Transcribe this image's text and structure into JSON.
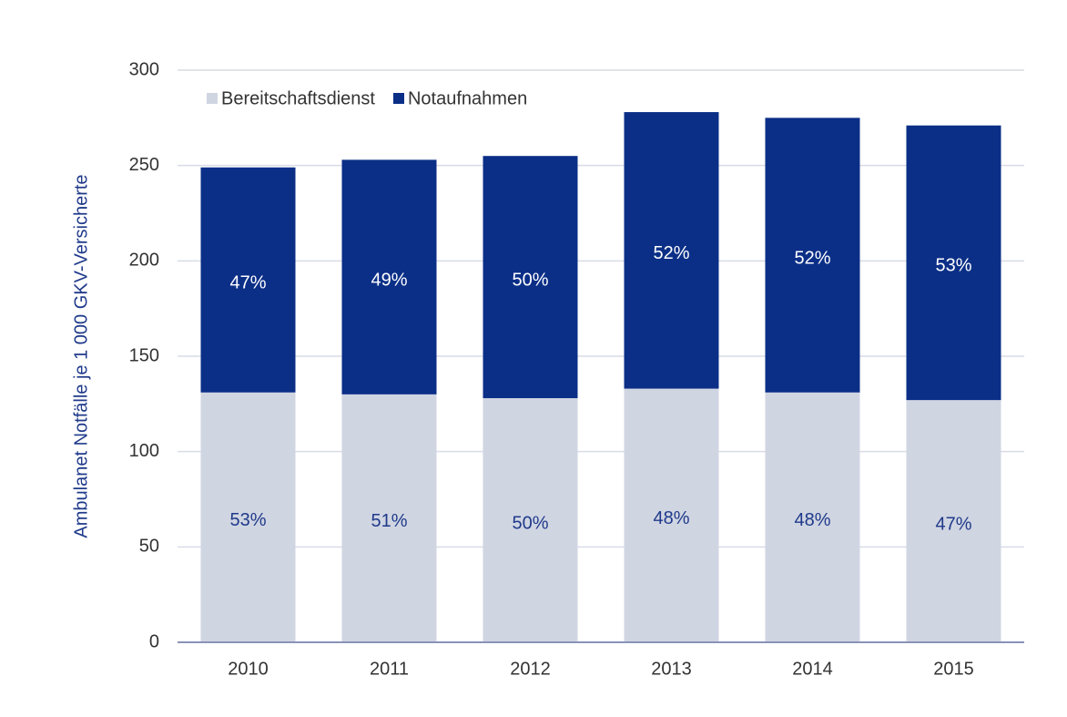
{
  "chart_data": {
    "type": "stacked_bar",
    "y_axis_label": "Ambulanet Notfälle je 1 000 GKV-Versicherte",
    "categories": [
      "2010",
      "2011",
      "2012",
      "2013",
      "2014",
      "2015"
    ],
    "series": [
      {
        "name": "Bereitschaftsdienst",
        "color": "#d0d5e2",
        "label_color": "#1f3a8a",
        "values": [
          131,
          130,
          128,
          133,
          131,
          127
        ],
        "share_labels": [
          "53%",
          "51%",
          "50%",
          "48%",
          "48%",
          "47%"
        ]
      },
      {
        "name": "Notaufnahmen",
        "color": "#0b2f87",
        "label_color": "#ffffff",
        "values": [
          118,
          123,
          127,
          145,
          144,
          144
        ],
        "share_labels": [
          "47%",
          "49%",
          "50%",
          "52%",
          "52%",
          "53%"
        ]
      }
    ],
    "ylim": [
      0,
      300
    ],
    "yticks": [
      0,
      50,
      100,
      150,
      200,
      250,
      300
    ],
    "grid": true,
    "legend": "top-left"
  }
}
